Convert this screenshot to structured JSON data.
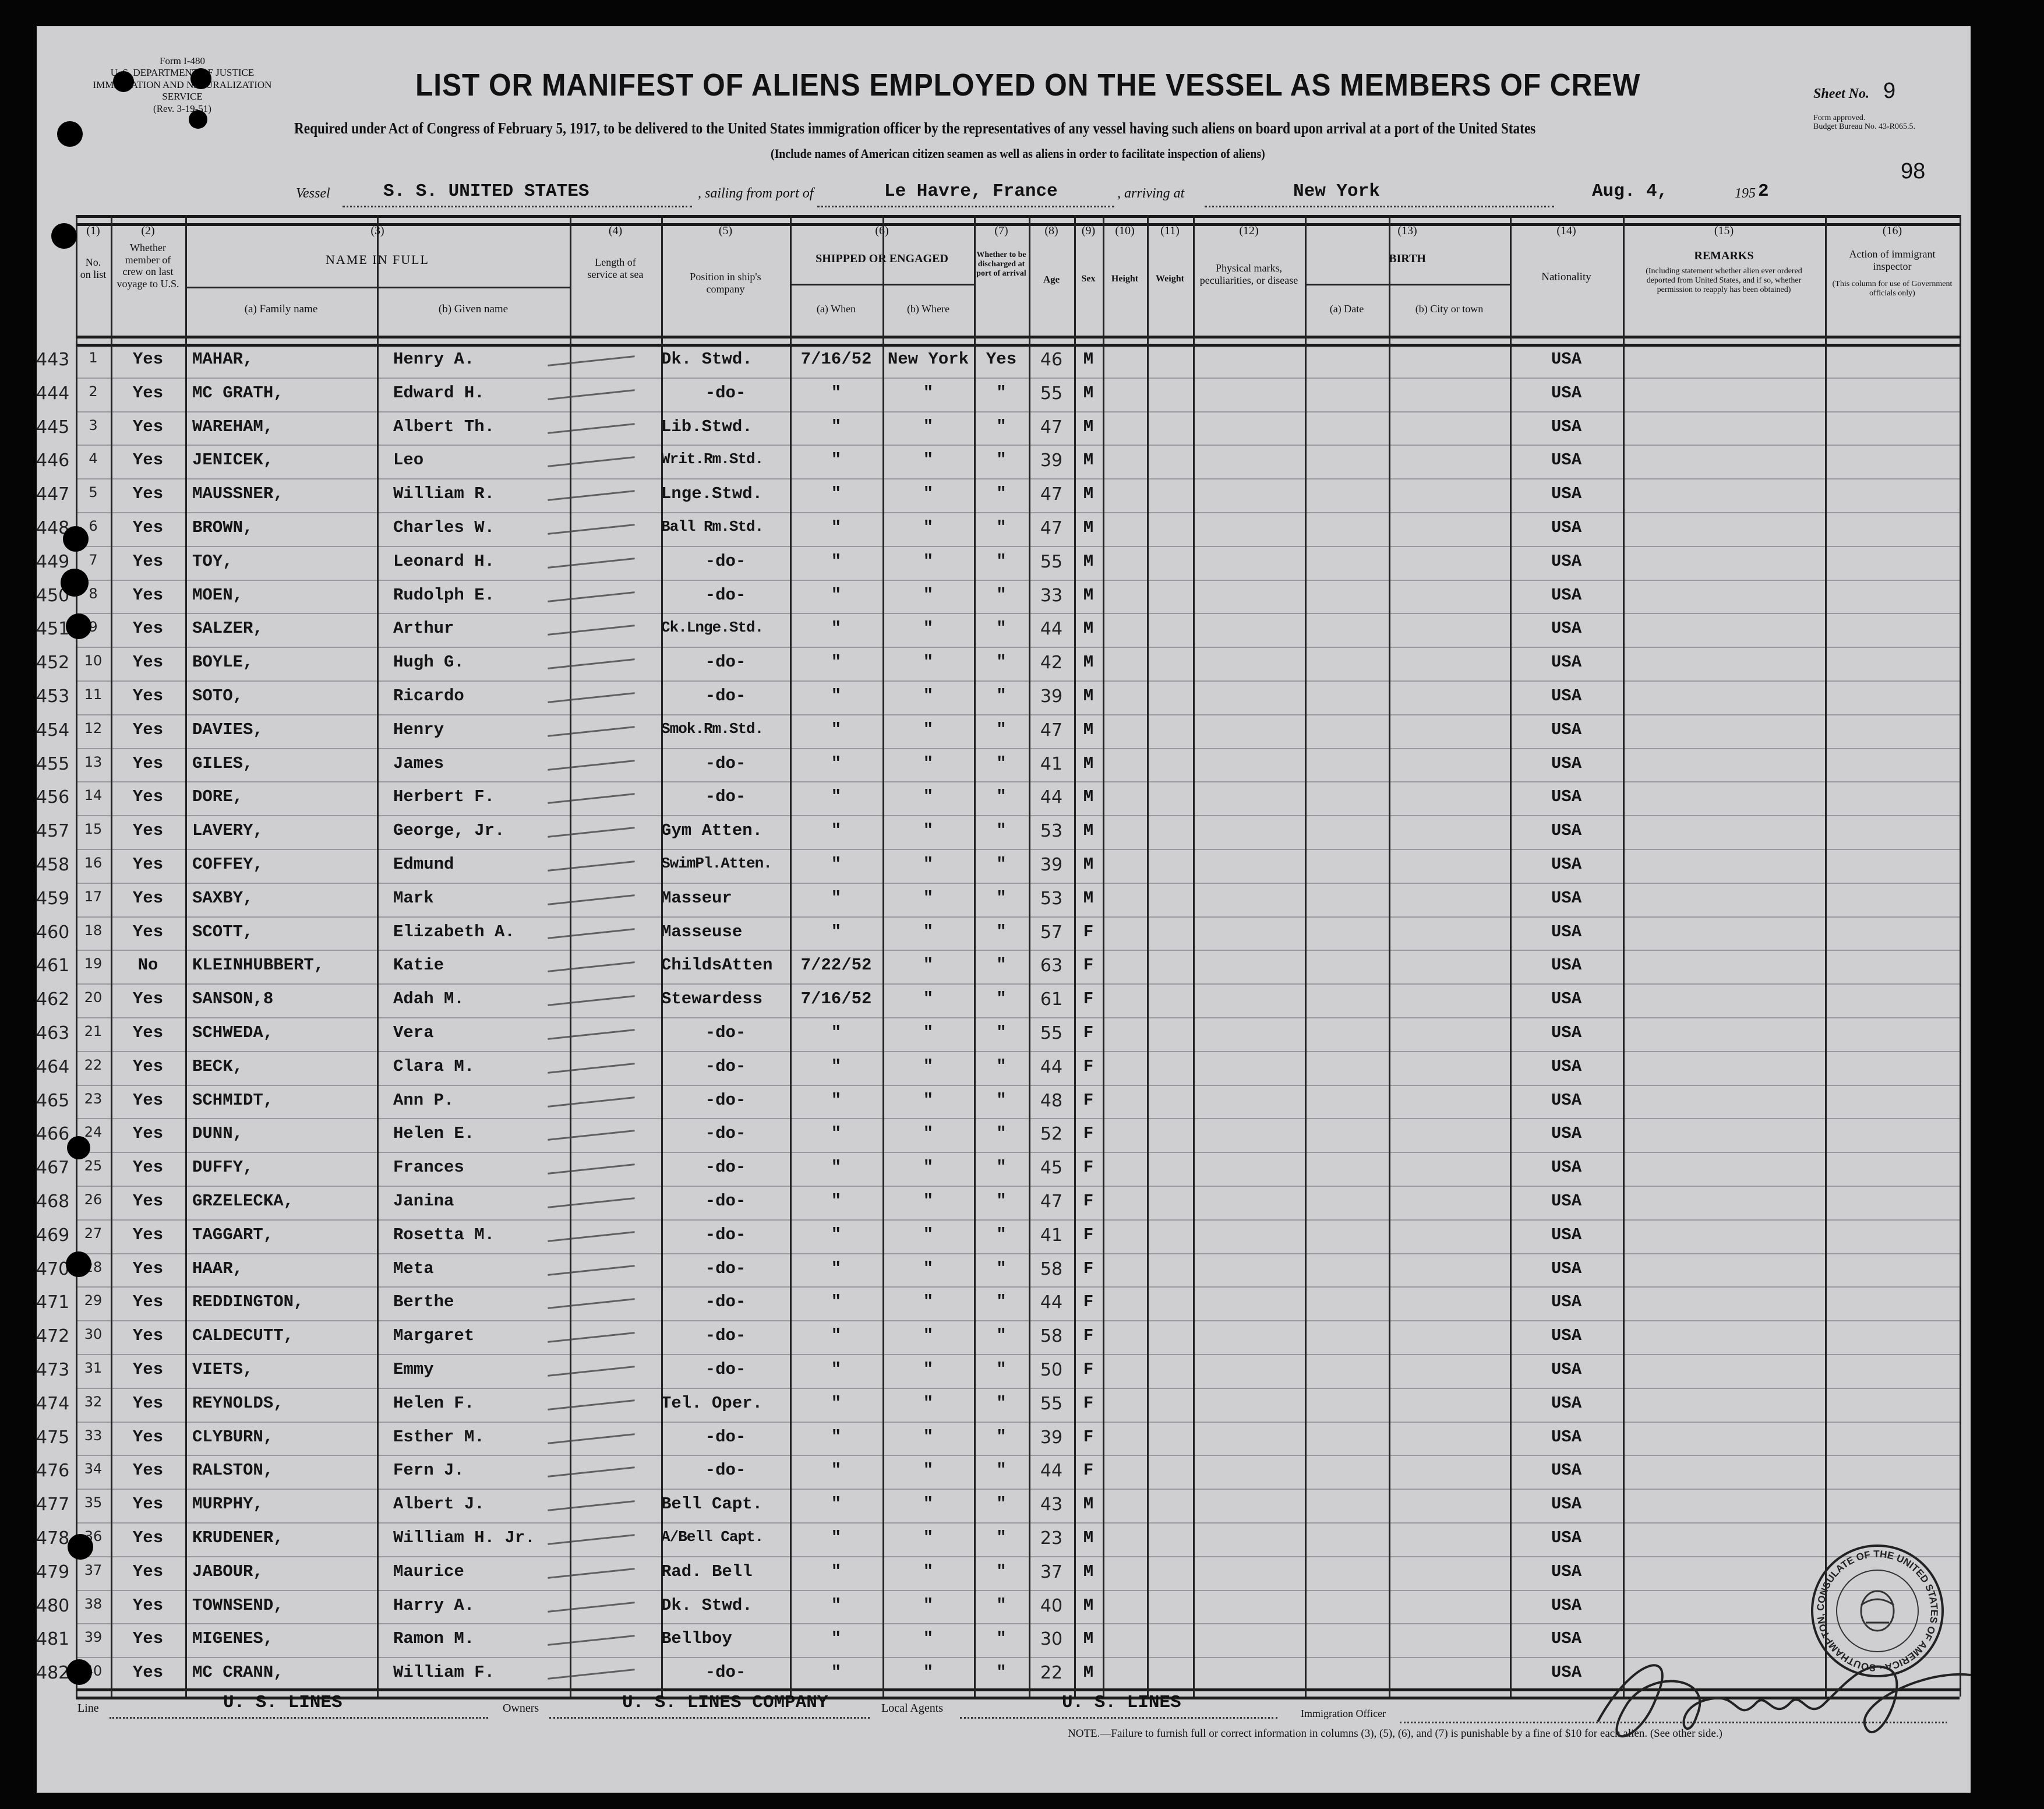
{
  "form": {
    "form_no": "Form I-480",
    "department": "U. S. DEPARTMENT OF JUSTICE",
    "service": "IMMIGRATION AND NATURALIZATION SERVICE",
    "rev": "(Rev. 3-19-51)",
    "title": "LIST OR MANIFEST OF ALIENS EMPLOYED ON THE VESSEL AS MEMBERS OF CREW",
    "required_text": "Required under Act of Congress of February 5, 1917, to be delivered to the United States immigration officer by the representatives of any vessel having such aliens on board upon arrival at a port of the United States",
    "include_text": "(Include names of American citizen seamen as well as aliens in order to facilitate inspection of aliens)",
    "sheet_label": "Sheet No.",
    "sheet_no": "9",
    "form_approved": "Form approved.",
    "budget_bureau": "Budget Bureau No. 43-R065.5.",
    "page_stamp": "98"
  },
  "voyage": {
    "vessel_label": "Vessel",
    "vessel": "S. S. UNITED STATES",
    "sailing_label": ", sailing from port of",
    "sailing_from": "Le Havre, France",
    "arriving_label": ", arriving at",
    "arriving_at": "New York",
    "date": "Aug.  4,",
    "year_prefix": "195",
    "year_suffix": "2"
  },
  "columns": {
    "c1_num": "(1)",
    "c1": "No. on list",
    "c2_num": "(2)",
    "c2": "Whether member of crew on last voyage to U.S.",
    "c3_num": "(3)",
    "c3": "NAME IN FULL",
    "c3a": "(a) Family name",
    "c3b": "(b) Given name",
    "c4_num": "(4)",
    "c4": "Length of service at sea",
    "c5_num": "(5)",
    "c5": "Position in ship's company",
    "c6_num": "(6)",
    "c6": "SHIPPED OR ENGAGED",
    "c6a": "(a) When",
    "c6b": "(b) Where",
    "c7_num": "(7)",
    "c7": "Whether to be discharged at port of arrival",
    "c8_num": "(8)",
    "c8": "Age",
    "c9_num": "(9)",
    "c9": "Sex",
    "c10_num": "(10)",
    "c10": "Height",
    "c11_num": "(11)",
    "c11": "Weight",
    "c12_num": "(12)",
    "c12": "Physical marks, peculiarities, or disease",
    "c13_num": "(13)",
    "c13": "BIRTH",
    "c13a": "(a) Date",
    "c13b": "(b) City or town",
    "c14_num": "(14)",
    "c14": "Nationality",
    "c15_num": "(15)",
    "c15": "REMARKS",
    "c15_note": "(Including statement whether alien ever ordered deported from United States, and if so, whether permission to reapply has been obtained)",
    "c16_num": "(16)",
    "c16": "Action of immigrant inspector",
    "c16_note": "(This column for use of Government officials only)"
  },
  "rows": [
    {
      "ref": "443",
      "no": "1",
      "crew": "Yes",
      "family": "MAHAR,",
      "given": "Henry A.",
      "position": "Dk. Stwd.",
      "when": "7/16/52",
      "where": "New York",
      "discharge": "Yes",
      "age": "46",
      "sex": "M",
      "nationality": "USA"
    },
    {
      "ref": "444",
      "no": "2",
      "crew": "Yes",
      "family": "MC GRATH,",
      "given": "Edward H.",
      "position": "-do-",
      "when": "\"",
      "where": "\"",
      "discharge": "\"",
      "age": "55",
      "sex": "M",
      "nationality": "USA"
    },
    {
      "ref": "445",
      "no": "3",
      "crew": "Yes",
      "family": "WAREHAM,",
      "given": "Albert Th.",
      "position": "Lib.Stwd.",
      "when": "\"",
      "where": "\"",
      "discharge": "\"",
      "age": "47",
      "sex": "M",
      "nationality": "USA"
    },
    {
      "ref": "446",
      "no": "4",
      "crew": "Yes",
      "family": "JENICEK,",
      "given": "Leo",
      "position": "Writ.Rm.Std.",
      "when": "\"",
      "where": "\"",
      "discharge": "\"",
      "age": "39",
      "sex": "M",
      "nationality": "USA"
    },
    {
      "ref": "447",
      "no": "5",
      "crew": "Yes",
      "family": "MAUSSNER,",
      "given": "William R.",
      "position": "Lnge.Stwd.",
      "when": "\"",
      "where": "\"",
      "discharge": "\"",
      "age": "47",
      "sex": "M",
      "nationality": "USA"
    },
    {
      "ref": "448",
      "no": "6",
      "crew": "Yes",
      "family": "BROWN,",
      "given": "Charles W.",
      "position": "Ball Rm.Std.",
      "when": "\"",
      "where": "\"",
      "discharge": "\"",
      "age": "47",
      "sex": "M",
      "nationality": "USA"
    },
    {
      "ref": "449",
      "no": "7",
      "crew": "Yes",
      "family": "TOY,",
      "given": "Leonard H.",
      "position": "-do-",
      "when": "\"",
      "where": "\"",
      "discharge": "\"",
      "age": "55",
      "sex": "M",
      "nationality": "USA"
    },
    {
      "ref": "450",
      "no": "8",
      "crew": "Yes",
      "family": "MOEN,",
      "given": "Rudolph E.",
      "position": "-do-",
      "when": "\"",
      "where": "\"",
      "discharge": "\"",
      "age": "33",
      "sex": "M",
      "nationality": "USA"
    },
    {
      "ref": "451",
      "no": "9",
      "crew": "Yes",
      "family": "SALZER,",
      "given": "Arthur",
      "position": "Ck.Lnge.Std.",
      "when": "\"",
      "where": "\"",
      "discharge": "\"",
      "age": "44",
      "sex": "M",
      "nationality": "USA"
    },
    {
      "ref": "452",
      "no": "10",
      "crew": "Yes",
      "family": "BOYLE,",
      "given": "Hugh G.",
      "position": "-do-",
      "when": "\"",
      "where": "\"",
      "discharge": "\"",
      "age": "42",
      "sex": "M",
      "nationality": "USA"
    },
    {
      "ref": "453",
      "no": "11",
      "crew": "Yes",
      "family": "SOTO,",
      "given": "Ricardo",
      "position": "-do-",
      "when": "\"",
      "where": "\"",
      "discharge": "\"",
      "age": "39",
      "sex": "M",
      "nationality": "USA"
    },
    {
      "ref": "454",
      "no": "12",
      "crew": "Yes",
      "family": "DAVIES,",
      "given": "Henry",
      "position": "Smok.Rm.Std.",
      "when": "\"",
      "where": "\"",
      "discharge": "\"",
      "age": "47",
      "sex": "M",
      "nationality": "USA"
    },
    {
      "ref": "455",
      "no": "13",
      "crew": "Yes",
      "family": "GILES,",
      "given": "James",
      "position": "-do-",
      "when": "\"",
      "where": "\"",
      "discharge": "\"",
      "age": "41",
      "sex": "M",
      "nationality": "USA"
    },
    {
      "ref": "456",
      "no": "14",
      "crew": "Yes",
      "family": "DORE,",
      "given": "Herbert F.",
      "position": "-do-",
      "when": "\"",
      "where": "\"",
      "discharge": "\"",
      "age": "44",
      "sex": "M",
      "nationality": "USA"
    },
    {
      "ref": "457",
      "no": "15",
      "crew": "Yes",
      "family": "LAVERY,",
      "given": "George, Jr.",
      "position": "Gym Atten.",
      "when": "\"",
      "where": "\"",
      "discharge": "\"",
      "age": "53",
      "sex": "M",
      "nationality": "USA"
    },
    {
      "ref": "458",
      "no": "16",
      "crew": "Yes",
      "family": "COFFEY,",
      "given": "Edmund",
      "position": "SwimPl.Atten.",
      "when": "\"",
      "where": "\"",
      "discharge": "\"",
      "age": "39",
      "sex": "M",
      "nationality": "USA"
    },
    {
      "ref": "459",
      "no": "17",
      "crew": "Yes",
      "family": "SAXBY,",
      "given": "Mark",
      "position": "Masseur",
      "when": "\"",
      "where": "\"",
      "discharge": "\"",
      "age": "53",
      "sex": "M",
      "nationality": "USA"
    },
    {
      "ref": "460",
      "no": "18",
      "crew": "Yes",
      "family": "SCOTT,",
      "given": "Elizabeth A.",
      "position": "Masseuse",
      "when": "\"",
      "where": "\"",
      "discharge": "\"",
      "age": "57",
      "sex": "F",
      "nationality": "USA"
    },
    {
      "ref": "461",
      "no": "19",
      "crew": "No",
      "family": "KLEINHUBBERT,",
      "given": "Katie",
      "position": "ChildsAtten",
      "when": "7/22/52",
      "where": "\"",
      "discharge": "\"",
      "age": "63",
      "sex": "F",
      "nationality": "USA"
    },
    {
      "ref": "462",
      "no": "20",
      "crew": "Yes",
      "family": "SANSON,8",
      "given": "Adah M.",
      "position": "Stewardess",
      "when": "7/16/52",
      "where": "\"",
      "discharge": "\"",
      "age": "61",
      "sex": "F",
      "nationality": "USA"
    },
    {
      "ref": "463",
      "no": "21",
      "crew": "Yes",
      "family": "SCHWEDA,",
      "given": "Vera",
      "position": "-do-",
      "when": "\"",
      "where": "\"",
      "discharge": "\"",
      "age": "55",
      "sex": "F",
      "nationality": "USA"
    },
    {
      "ref": "464",
      "no": "22",
      "crew": "Yes",
      "family": "BECK,",
      "given": "Clara M.",
      "position": "-do-",
      "when": "\"",
      "where": "\"",
      "discharge": "\"",
      "age": "44",
      "sex": "F",
      "nationality": "USA"
    },
    {
      "ref": "465",
      "no": "23",
      "crew": "Yes",
      "family": "SCHMIDT,",
      "given": "Ann P.",
      "position": "-do-",
      "when": "\"",
      "where": "\"",
      "discharge": "\"",
      "age": "48",
      "sex": "F",
      "nationality": "USA"
    },
    {
      "ref": "466",
      "no": "24",
      "crew": "Yes",
      "family": "DUNN,",
      "given": "Helen E.",
      "position": "-do-",
      "when": "\"",
      "where": "\"",
      "discharge": "\"",
      "age": "52",
      "sex": "F",
      "nationality": "USA"
    },
    {
      "ref": "467",
      "no": "25",
      "crew": "Yes",
      "family": "DUFFY,",
      "given": "Frances",
      "position": "-do-",
      "when": "\"",
      "where": "\"",
      "discharge": "\"",
      "age": "45",
      "sex": "F",
      "nationality": "USA"
    },
    {
      "ref": "468",
      "no": "26",
      "crew": "Yes",
      "family": "GRZELECKA,",
      "given": "Janina",
      "position": "-do-",
      "when": "\"",
      "where": "\"",
      "discharge": "\"",
      "age": "47",
      "sex": "F",
      "nationality": "USA"
    },
    {
      "ref": "469",
      "no": "27",
      "crew": "Yes",
      "family": "TAGGART,",
      "given": "Rosetta M.",
      "position": "-do-",
      "when": "\"",
      "where": "\"",
      "discharge": "\"",
      "age": "41",
      "sex": "F",
      "nationality": "USA"
    },
    {
      "ref": "470",
      "no": "28",
      "crew": "Yes",
      "family": "HAAR,",
      "given": "Meta",
      "position": "-do-",
      "when": "\"",
      "where": "\"",
      "discharge": "\"",
      "age": "58",
      "sex": "F",
      "nationality": "USA"
    },
    {
      "ref": "471",
      "no": "29",
      "crew": "Yes",
      "family": "REDDINGTON,",
      "given": "Berthe",
      "position": "-do-",
      "when": "\"",
      "where": "\"",
      "discharge": "\"",
      "age": "44",
      "sex": "F",
      "nationality": "USA"
    },
    {
      "ref": "472",
      "no": "30",
      "crew": "Yes",
      "family": "CALDECUTT,",
      "given": "Margaret",
      "position": "-do-",
      "when": "\"",
      "where": "\"",
      "discharge": "\"",
      "age": "58",
      "sex": "F",
      "nationality": "USA"
    },
    {
      "ref": "473",
      "no": "31",
      "crew": "Yes",
      "family": "VIETS,",
      "given": "Emmy",
      "position": "-do-",
      "when": "\"",
      "where": "\"",
      "discharge": "\"",
      "age": "50",
      "sex": "F",
      "nationality": "USA"
    },
    {
      "ref": "474",
      "no": "32",
      "crew": "Yes",
      "family": "REYNOLDS,",
      "given": "Helen F.",
      "position": "Tel. Oper.",
      "when": "\"",
      "where": "\"",
      "discharge": "\"",
      "age": "55",
      "sex": "F",
      "nationality": "USA"
    },
    {
      "ref": "475",
      "no": "33",
      "crew": "Yes",
      "family": "CLYBURN,",
      "given": "Esther M.",
      "position": "-do-",
      "when": "\"",
      "where": "\"",
      "discharge": "\"",
      "age": "39",
      "sex": "F",
      "nationality": "USA"
    },
    {
      "ref": "476",
      "no": "34",
      "crew": "Yes",
      "family": "RALSTON,",
      "given": "Fern J.",
      "position": "-do-",
      "when": "\"",
      "where": "\"",
      "discharge": "\"",
      "age": "44",
      "sex": "F",
      "nationality": "USA"
    },
    {
      "ref": "477",
      "no": "35",
      "crew": "Yes",
      "family": "MURPHY,",
      "given": "Albert J.",
      "position": "Bell Capt.",
      "when": "\"",
      "where": "\"",
      "discharge": "\"",
      "age": "43",
      "sex": "M",
      "nationality": "USA"
    },
    {
      "ref": "478",
      "no": "36",
      "crew": "Yes",
      "family": "KRUDENER,",
      "given": "William H. Jr.",
      "position": "A/Bell Capt.",
      "when": "\"",
      "where": "\"",
      "discharge": "\"",
      "age": "23",
      "sex": "M",
      "nationality": "USA"
    },
    {
      "ref": "479",
      "no": "37",
      "crew": "Yes",
      "family": "JABOUR,",
      "given": "Maurice",
      "position": "Rad. Bell",
      "when": "\"",
      "where": "\"",
      "discharge": "\"",
      "age": "37",
      "sex": "M",
      "nationality": "USA"
    },
    {
      "ref": "480",
      "no": "38",
      "crew": "Yes",
      "family": "TOWNSEND,",
      "given": "Harry A.",
      "position": "Dk. Stwd.",
      "when": "\"",
      "where": "\"",
      "discharge": "\"",
      "age": "40",
      "sex": "M",
      "nationality": "USA"
    },
    {
      "ref": "481",
      "no": "39",
      "crew": "Yes",
      "family": "MIGENES,",
      "given": "Ramon M.",
      "position": "Bellboy",
      "when": "\"",
      "where": "\"",
      "discharge": "\"",
      "age": "30",
      "sex": "M",
      "nationality": "USA"
    },
    {
      "ref": "482",
      "no": "40",
      "crew": "Yes",
      "family": "MC CRANN,",
      "given": "William F.",
      "position": "-do-",
      "when": "\"",
      "where": "\"",
      "discharge": "\"",
      "age": "22",
      "sex": "M",
      "nationality": "USA"
    }
  ],
  "footer": {
    "line_label": "Line",
    "line": "U. S. LINES",
    "owners_label": "Owners",
    "owners": "U. S. LINES COMPANY",
    "agents_label": "Local Agents",
    "agents": "U. S. LINES",
    "officer_label": "Immigration Officer",
    "note": "NOTE.—Failure to furnish full or correct information in columns (3), (5), (6), and (7) is punishable by a fine of $10 for each alien.   (See other side.)"
  },
  "seal": {
    "text": "Consulate of the United States of America · Southampton, England"
  }
}
